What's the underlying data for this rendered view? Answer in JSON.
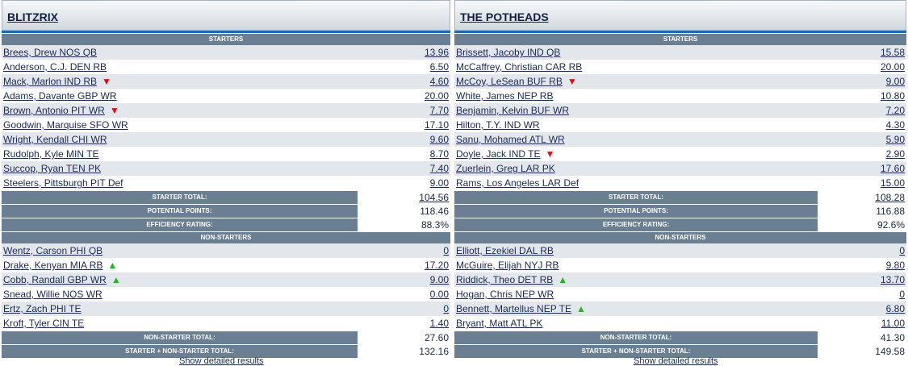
{
  "teams": [
    {
      "name": "BLITZRIX",
      "starters_label": "STARTERS",
      "starters": [
        {
          "player": "Brees, Drew NOS QB",
          "points": "13.96",
          "arrow": ""
        },
        {
          "player": "Anderson, C.J. DEN RB",
          "points": "6.50",
          "arrow": ""
        },
        {
          "player": "Mack, Marlon IND RB",
          "points": "4.60",
          "arrow": "down"
        },
        {
          "player": "Adams, Davante GBP WR",
          "points": "20.00",
          "arrow": ""
        },
        {
          "player": "Brown, Antonio PIT WR",
          "points": "7.70",
          "arrow": "down"
        },
        {
          "player": "Goodwin, Marquise SFO WR",
          "points": "17.10",
          "arrow": ""
        },
        {
          "player": "Wright, Kendall CHI WR",
          "points": "9.60",
          "arrow": ""
        },
        {
          "player": "Rudolph, Kyle MIN TE",
          "points": "8.70",
          "arrow": ""
        },
        {
          "player": "Succop, Ryan TEN PK",
          "points": "7.40",
          "arrow": ""
        },
        {
          "player": "Steelers, Pittsburgh PIT Def",
          "points": "9.00",
          "arrow": ""
        }
      ],
      "starter_total_label": "STARTER TOTAL:",
      "starter_total": "104.56",
      "potential_label": "POTENTIAL POINTS:",
      "potential": "118.46",
      "efficiency_label": "EFFICIENCY RATING:",
      "efficiency": "88.3%",
      "nonstarters_label": "NON-STARTERS",
      "nonstarters": [
        {
          "player": "Wentz, Carson PHI QB",
          "points": "0",
          "arrow": ""
        },
        {
          "player": "Drake, Kenyan MIA RB",
          "points": "17.20",
          "arrow": "up"
        },
        {
          "player": "Cobb, Randall GBP WR",
          "points": "9.00",
          "arrow": "up"
        },
        {
          "player": "Snead, Willie NOS WR",
          "points": "0.00",
          "arrow": ""
        },
        {
          "player": "Ertz, Zach PHI TE",
          "points": "0",
          "arrow": ""
        },
        {
          "player": "Kroft, Tyler CIN TE",
          "points": "1.40",
          "arrow": ""
        }
      ],
      "nonstarter_total_label": "NON-STARTER TOTAL:",
      "nonstarter_total": "27.60",
      "combined_label": "STARTER + NON-STARTER TOTAL:",
      "combined_total": "132.16",
      "footer_link": "Show detailed results"
    },
    {
      "name": "THE POTHEADS",
      "starters_label": "STARTERS",
      "starters": [
        {
          "player": "Brissett, Jacoby IND QB",
          "points": "15.58",
          "arrow": ""
        },
        {
          "player": "McCaffrey, Christian CAR RB",
          "points": "20.00",
          "arrow": ""
        },
        {
          "player": "McCoy, LeSean BUF RB",
          "points": "9.00",
          "arrow": "down"
        },
        {
          "player": "White, James NEP RB",
          "points": "10.80",
          "arrow": ""
        },
        {
          "player": "Benjamin, Kelvin BUF WR",
          "points": "7.20",
          "arrow": ""
        },
        {
          "player": "Hilton, T.Y. IND WR",
          "points": "4.30",
          "arrow": ""
        },
        {
          "player": "Sanu, Mohamed ATL WR",
          "points": "5.90",
          "arrow": ""
        },
        {
          "player": "Doyle, Jack IND TE",
          "points": "2.90",
          "arrow": "down"
        },
        {
          "player": "Zuerlein, Greg LAR PK",
          "points": "17.60",
          "arrow": ""
        },
        {
          "player": "Rams, Los Angeles LAR Def",
          "points": "15.00",
          "arrow": ""
        }
      ],
      "starter_total_label": "STARTER TOTAL:",
      "starter_total": "108.28",
      "potential_label": "POTENTIAL POINTS:",
      "potential": "116.88",
      "efficiency_label": "EFFICIENCY RATING:",
      "efficiency": "92.6%",
      "nonstarters_label": "NON-STARTERS",
      "nonstarters": [
        {
          "player": "Elliott, Ezekiel DAL RB",
          "points": "0",
          "arrow": ""
        },
        {
          "player": "McGuire, Elijah NYJ RB",
          "points": "9.80",
          "arrow": ""
        },
        {
          "player": "Riddick, Theo DET RB",
          "points": "13.70",
          "arrow": "up"
        },
        {
          "player": "Hogan, Chris NEP WR",
          "points": "0",
          "arrow": ""
        },
        {
          "player": "Bennett, Martellus NEP TE",
          "points": "6.80",
          "arrow": "up"
        },
        {
          "player": "Bryant, Matt ATL PK",
          "points": "11.00",
          "arrow": ""
        }
      ],
      "nonstarter_total_label": "NON-STARTER TOTAL:",
      "nonstarter_total": "41.30",
      "combined_label": "STARTER + NON-STARTER TOTAL:",
      "combined_total": "149.58",
      "footer_link": "Show detailed results"
    }
  ],
  "colors": {
    "header_blue_bar": "#1d6cb1",
    "section_bg": "#6b7f93",
    "row_alt": "#e3e7ec",
    "arrow_down": "#e01010",
    "arrow_up": "#20b820"
  },
  "icons": {
    "down": "red-down-triangle-icon",
    "up": "green-up-triangle-icon"
  }
}
